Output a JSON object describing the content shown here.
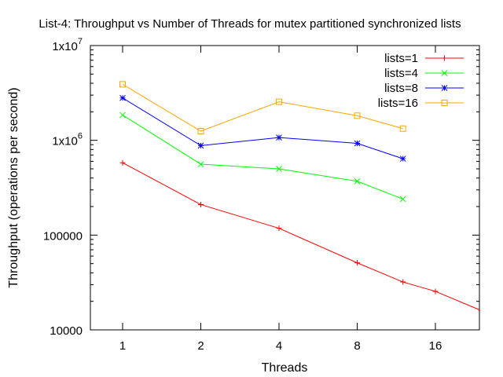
{
  "chart_data": {
    "type": "line",
    "title": "List-4: Throughput vs Number of Threads for mutex partitioned synchronized lists",
    "xlabel": "Threads",
    "ylabel": "Throughput (operations per second)",
    "x_scale": "log2",
    "y_scale": "log10",
    "xlim": [
      0.7,
      24
    ],
    "ylim": [
      10000,
      10000000
    ],
    "x_ticks": [
      {
        "value": 1,
        "label": "1"
      },
      {
        "value": 2,
        "label": "2"
      },
      {
        "value": 4,
        "label": "4"
      },
      {
        "value": 8,
        "label": "8"
      },
      {
        "value": 16,
        "label": "16"
      }
    ],
    "y_ticks": [
      {
        "value": 10000,
        "label": "10000"
      },
      {
        "value": 100000,
        "label": "100000"
      },
      {
        "value": 1000000,
        "base": "1x10",
        "exp": "6"
      },
      {
        "value": 10000000,
        "base": "1x10",
        "exp": "7"
      }
    ],
    "grid": false,
    "legend_position": "top-right",
    "series": [
      {
        "name": "lists=1",
        "color": "#ff0000",
        "marker": "plus",
        "x": [
          1,
          2,
          4,
          8,
          12,
          16,
          24
        ],
        "y": [
          580000,
          210000,
          118000,
          51000,
          32000,
          25500,
          16000
        ]
      },
      {
        "name": "lists=4",
        "color": "#00ff00",
        "marker": "cross",
        "x": [
          1,
          2,
          4,
          8,
          12
        ],
        "y": [
          1850000,
          560000,
          500000,
          370000,
          240000
        ]
      },
      {
        "name": "lists=8",
        "color": "#0000ff",
        "marker": "star",
        "x": [
          1,
          2,
          4,
          8,
          12
        ],
        "y": [
          2800000,
          880000,
          1070000,
          930000,
          640000
        ]
      },
      {
        "name": "lists=16",
        "color": "#ffa500",
        "marker": "square",
        "x": [
          1,
          2,
          4,
          8,
          12
        ],
        "y": [
          3900000,
          1250000,
          2550000,
          1820000,
          1330000
        ]
      }
    ]
  }
}
